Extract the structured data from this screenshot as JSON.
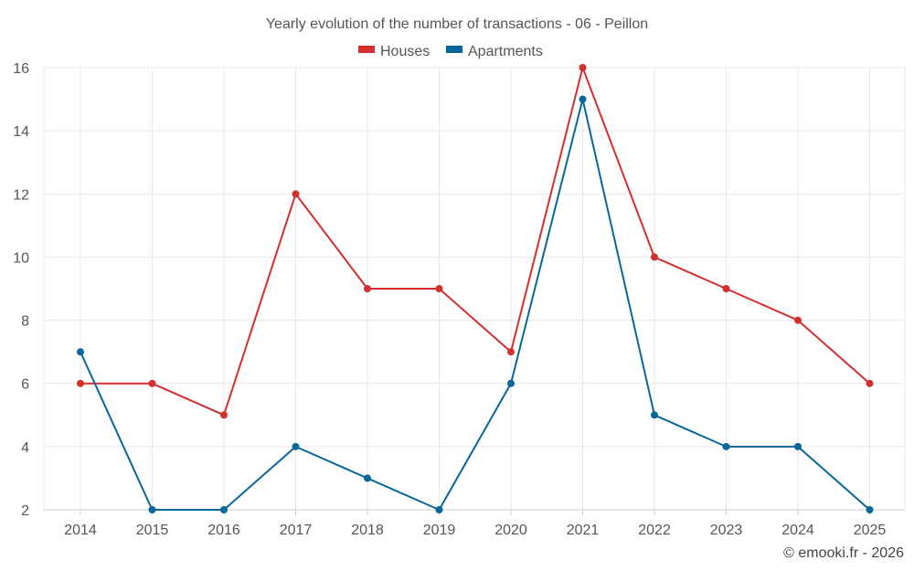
{
  "chart_data": {
    "type": "line",
    "title": "Yearly evolution of the number of transactions - 06 - Peillon",
    "categories": [
      "2014",
      "2015",
      "2016",
      "2017",
      "2018",
      "2019",
      "2020",
      "2021",
      "2022",
      "2023",
      "2024",
      "2025"
    ],
    "series": [
      {
        "name": "Houses",
        "color": "#d32f2f",
        "values": [
          6,
          6,
          5,
          12,
          9,
          9,
          7,
          16,
          10,
          9,
          8,
          6
        ]
      },
      {
        "name": "Apartments",
        "color": "#07679b",
        "values": [
          7,
          2,
          2,
          4,
          3,
          2,
          6,
          15,
          5,
          4,
          4,
          2
        ]
      }
    ],
    "xlabel": "",
    "ylabel": "",
    "ylim": [
      2,
      16
    ],
    "yticks": [
      "2",
      "4",
      "6",
      "8",
      "10",
      "12",
      "14",
      "16"
    ],
    "legend_position": "top-center",
    "grid": true
  },
  "credit": "© emooki.fr - 2026"
}
